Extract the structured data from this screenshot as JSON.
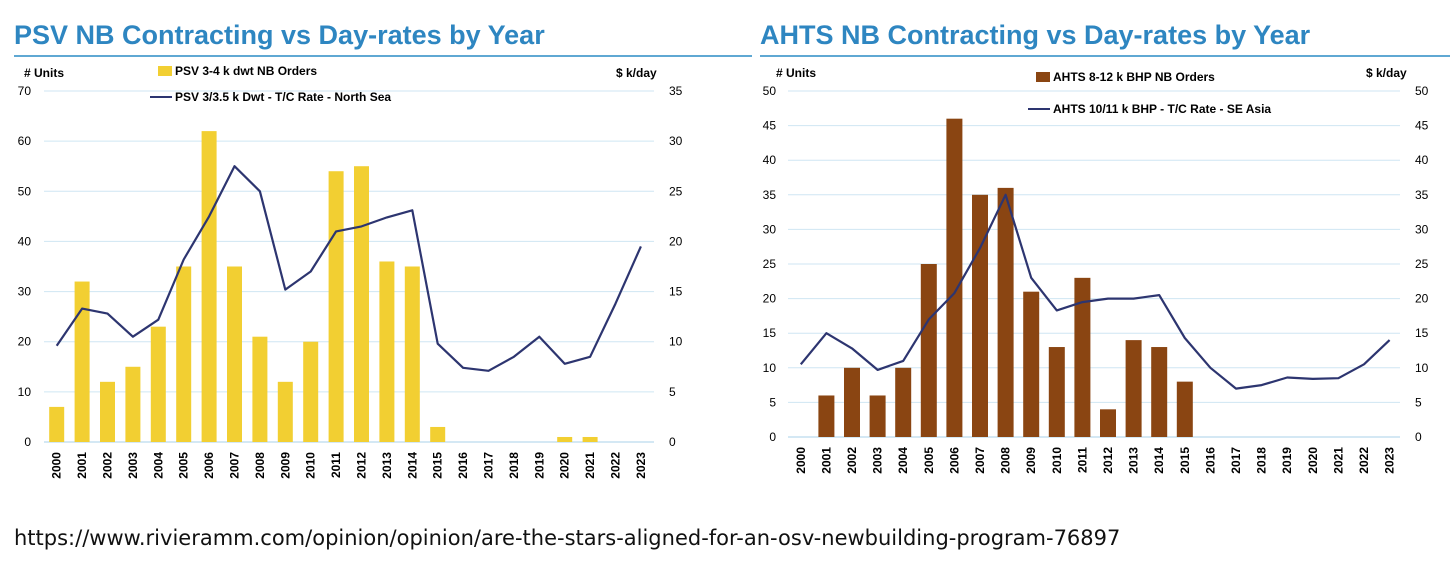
{
  "source_url": "https://www.rivieramm.com/opinion/opinion/are-the-stars-aligned-for-an-osv-newbuilding-program-76897",
  "chart_data": [
    {
      "type": "bar",
      "title": "PSV NB Contracting vs Day-rates by Year",
      "categories": [
        "2000",
        "2001",
        "2002",
        "2003",
        "2004",
        "2005",
        "2006",
        "2007",
        "2008",
        "2009",
        "2010",
        "2011",
        "2012",
        "2013",
        "2014",
        "2015",
        "2016",
        "2017",
        "2018",
        "2019",
        "2020",
        "2021",
        "2022",
        "2023"
      ],
      "ylabel_left": "# Units",
      "ylabel_right": "$ k/day",
      "ylim_left": [
        0,
        70
      ],
      "yticks_left": [
        0,
        10,
        20,
        30,
        40,
        50,
        60,
        70
      ],
      "ylim_right": [
        0,
        35
      ],
      "yticks_right": [
        0,
        5,
        10,
        15,
        20,
        25,
        30,
        35
      ],
      "grid": true,
      "legend_position": "top",
      "bar_color": "#f2cf32",
      "line_color": "#2d3570",
      "series": [
        {
          "name": "PSV 3-4 k dwt NB Orders",
          "kind": "bar",
          "axis": "left",
          "values": [
            7,
            32,
            12,
            15,
            23,
            35,
            62,
            35,
            21,
            12,
            20,
            54,
            55,
            36,
            35,
            3,
            0,
            0,
            0,
            0,
            1,
            1,
            0,
            0
          ]
        },
        {
          "name": "PSV 3/3.5 k Dwt - T/C Rate - North Sea",
          "kind": "line",
          "axis": "right",
          "values": [
            9.6,
            13.3,
            12.8,
            10.5,
            12.2,
            18.2,
            22.5,
            27.5,
            25.0,
            15.2,
            17.0,
            21.0,
            21.5,
            22.4,
            23.1,
            9.8,
            7.4,
            7.1,
            8.5,
            10.5,
            7.8,
            8.5,
            13.8,
            19.5
          ]
        }
      ]
    },
    {
      "type": "bar",
      "title": "AHTS NB Contracting vs Day-rates by Year",
      "categories": [
        "2000",
        "2001",
        "2002",
        "2003",
        "2004",
        "2005",
        "2006",
        "2007",
        "2008",
        "2009",
        "2010",
        "2011",
        "2012",
        "2013",
        "2014",
        "2015",
        "2016",
        "2017",
        "2018",
        "2019",
        "2020",
        "2021",
        "2022",
        "2023"
      ],
      "ylabel_left": "# Units",
      "ylabel_right": "$ k/day",
      "ylim_left": [
        0,
        50
      ],
      "yticks_left": [
        0,
        5,
        10,
        15,
        20,
        25,
        30,
        35,
        40,
        45,
        50
      ],
      "ylim_right": [
        0,
        50
      ],
      "yticks_right": [
        0,
        5,
        10,
        15,
        20,
        25,
        30,
        35,
        40,
        45,
        50
      ],
      "grid": true,
      "legend_position": "top",
      "bar_color": "#8a4512",
      "line_color": "#2d3570",
      "series": [
        {
          "name": "AHTS 8-12 k BHP NB Orders",
          "kind": "bar",
          "axis": "left",
          "values": [
            0,
            6,
            10,
            6,
            10,
            25,
            46,
            35,
            36,
            21,
            13,
            23,
            4,
            14,
            13,
            8,
            0,
            0,
            0,
            0,
            0,
            0,
            0,
            0
          ]
        },
        {
          "name": "AHTS 10/11 k BHP - T/C Rate - SE Asia",
          "kind": "line",
          "axis": "right",
          "values": [
            10.5,
            15.0,
            12.8,
            9.7,
            11.0,
            17.0,
            20.8,
            27.3,
            35.0,
            23.0,
            18.3,
            19.5,
            20.0,
            20.0,
            20.5,
            14.3,
            10.0,
            7.0,
            7.5,
            8.6,
            8.4,
            8.5,
            10.5,
            14.0
          ]
        }
      ]
    }
  ]
}
